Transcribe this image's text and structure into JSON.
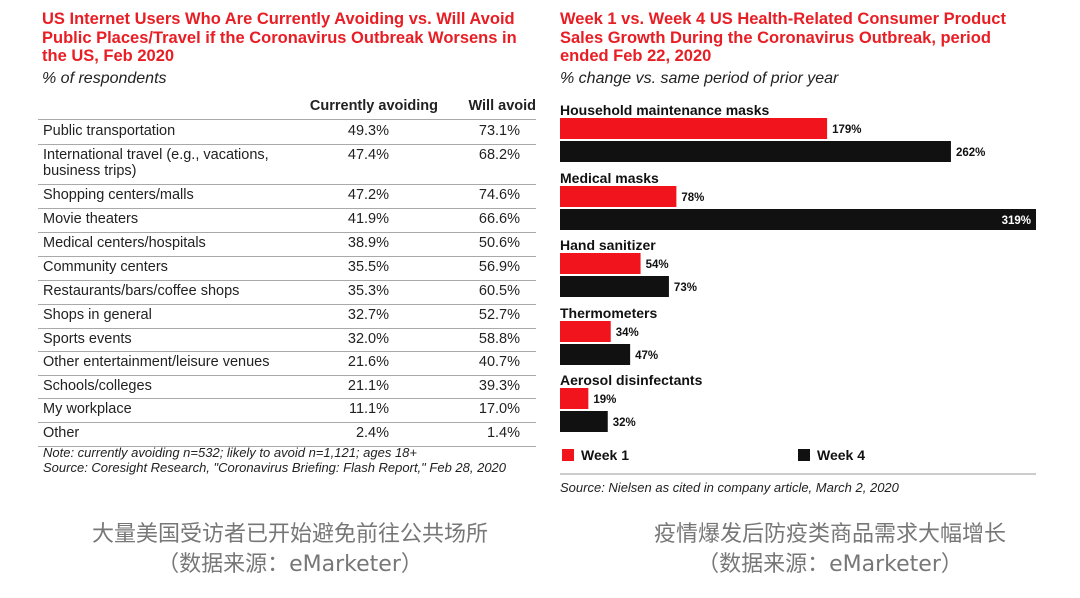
{
  "left": {
    "title": "US Internet Users Who Are Currently Avoiding vs. Will Avoid Public Places/Travel if the Coronavirus Outbreak Worsens in the US, Feb 2020",
    "subtitle": "% of respondents",
    "columns": [
      "Currently avoiding",
      "Will avoid"
    ],
    "rows": [
      {
        "label": "Public transportation",
        "currently": "49.3%",
        "will": "73.1%"
      },
      {
        "label": "International travel (e.g., vacations, business trips)",
        "currently": "47.4%",
        "will": "68.2%"
      },
      {
        "label": "Shopping centers/malls",
        "currently": "47.2%",
        "will": "74.6%"
      },
      {
        "label": "Movie theaters",
        "currently": "41.9%",
        "will": "66.6%"
      },
      {
        "label": "Medical centers/hospitals",
        "currently": "38.9%",
        "will": "50.6%"
      },
      {
        "label": "Community centers",
        "currently": "35.5%",
        "will": "56.9%"
      },
      {
        "label": "Restaurants/bars/coffee shops",
        "currently": "35.3%",
        "will": "60.5%"
      },
      {
        "label": "Shops in general",
        "currently": "32.7%",
        "will": "52.7%"
      },
      {
        "label": "Sports events",
        "currently": "32.0%",
        "will": "58.8%"
      },
      {
        "label": "Other entertainment/leisure venues",
        "currently": "21.6%",
        "will": "40.7%"
      },
      {
        "label": "Schools/colleges",
        "currently": "21.1%",
        "will": "39.3%"
      },
      {
        "label": "My workplace",
        "currently": "11.1%",
        "will": "17.0%"
      },
      {
        "label": "Other",
        "currently": "2.4%",
        "will": "1.4%"
      }
    ],
    "note": "Note: currently avoiding n=532; likely to avoid n=1,121; ages 18+",
    "source": "Source: Coresight Research, \"Coronavirus Briefing: Flash Report,\" Feb 28, 2020",
    "caption_line1": "大量美国受访者已开始避免前往公共场所",
    "caption_line2": "（数据来源：eMarketer）"
  },
  "chart_data": {
    "type": "bar",
    "title": "Week 1 vs. Week 4 US Health-Related Consumer Product Sales Growth During the Coronavirus Outbreak, period ended Feb 22, 2020",
    "subtitle": "% change vs. same period of prior year",
    "categories": [
      "Household maintenance masks",
      "Medical masks",
      "Hand sanitizer",
      "Thermometers",
      "Aerosol disinfectants"
    ],
    "series": [
      {
        "name": "Week 1",
        "color": "#f2141c",
        "values": [
          179,
          78,
          54,
          34,
          19
        ],
        "labels": [
          "179%",
          "78%",
          "54%",
          "34%",
          "19%"
        ]
      },
      {
        "name": "Week 4",
        "color": "#111111",
        "values": [
          262,
          319,
          73,
          47,
          32
        ],
        "labels": [
          "262%",
          "319%",
          "73%",
          "47%",
          "32%"
        ]
      }
    ],
    "xlim": [
      0,
      319
    ],
    "legend": "bottom",
    "source": "Source: Nielsen as cited in company article, March 2, 2020",
    "caption_line1": "疫情爆发后防疫类商品需求大幅增长",
    "caption_line2": "（数据来源：eMarketer）"
  }
}
